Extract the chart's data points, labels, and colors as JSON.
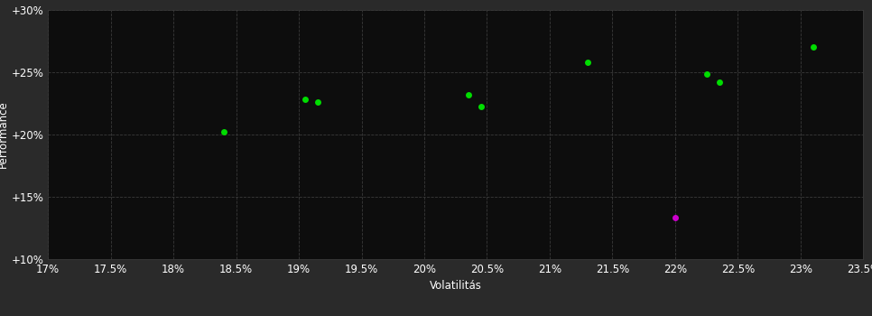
{
  "background_color": "#2a2a2a",
  "plot_bg_color": "#0d0d0d",
  "grid_color": "#3a3a3a",
  "text_color": "#ffffff",
  "xlabel": "Volatilitás",
  "ylabel": "Performance",
  "xlim": [
    0.17,
    0.235
  ],
  "ylim": [
    0.1,
    0.3
  ],
  "xticks": [
    0.17,
    0.175,
    0.18,
    0.185,
    0.19,
    0.195,
    0.2,
    0.205,
    0.21,
    0.215,
    0.22,
    0.225,
    0.23,
    0.235
  ],
  "yticks": [
    0.1,
    0.15,
    0.2,
    0.25,
    0.3
  ],
  "xtick_labels": [
    "17%",
    "17.5%",
    "18%",
    "18.5%",
    "19%",
    "19.5%",
    "20%",
    "20.5%",
    "21%",
    "21.5%",
    "22%",
    "22.5%",
    "23%",
    "23.5%"
  ],
  "ytick_labels": [
    "+10%",
    "+15%",
    "+20%",
    "+25%",
    "+30%"
  ],
  "green_points": [
    [
      0.184,
      0.202
    ],
    [
      0.1905,
      0.228
    ],
    [
      0.1915,
      0.226
    ],
    [
      0.2035,
      0.232
    ],
    [
      0.2045,
      0.222
    ],
    [
      0.213,
      0.258
    ],
    [
      0.2225,
      0.248
    ],
    [
      0.2235,
      0.242
    ],
    [
      0.231,
      0.27
    ]
  ],
  "magenta_points": [
    [
      0.22,
      0.133
    ]
  ],
  "green_color": "#00dd00",
  "magenta_color": "#cc00cc",
  "point_size": 25,
  "font_size": 8.5
}
